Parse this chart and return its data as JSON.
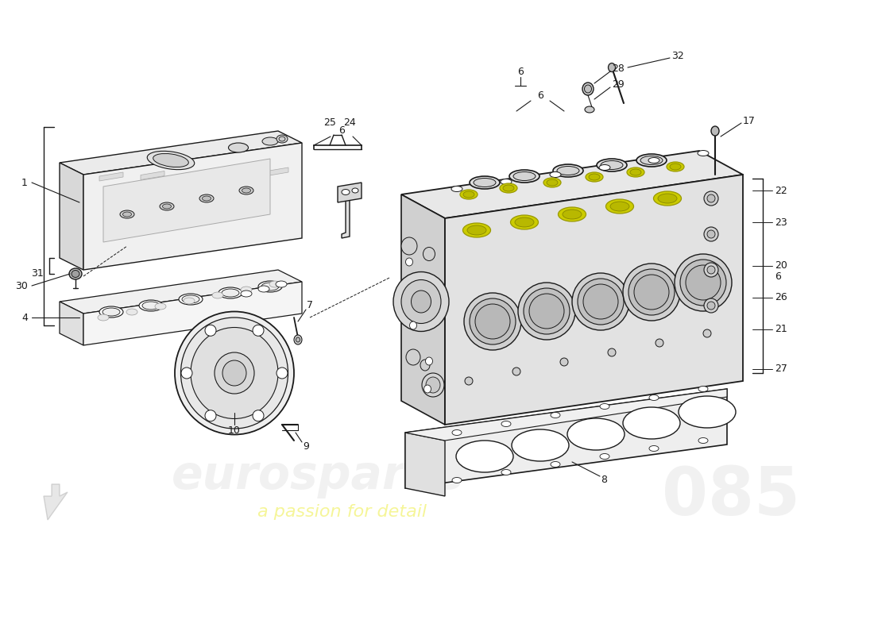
{
  "background_color": "#ffffff",
  "line_color": "#1a1a1a",
  "label_color": "#1a1a1a",
  "fill_light": "#f2f2f2",
  "fill_mid": "#e0e0e0",
  "fill_dark": "#c8c8c8",
  "fill_white": "#ffffff",
  "highlight_yellow": "#d4d400",
  "watermark_color": "#d8d8d8",
  "watermark_yellow": "#e8e800",
  "watermark_alpha": 0.35,
  "font_size_label": 9,
  "font_size_watermark": 24,
  "font_size_watermark_sub": 12,
  "font_size_watermark_num": 32
}
